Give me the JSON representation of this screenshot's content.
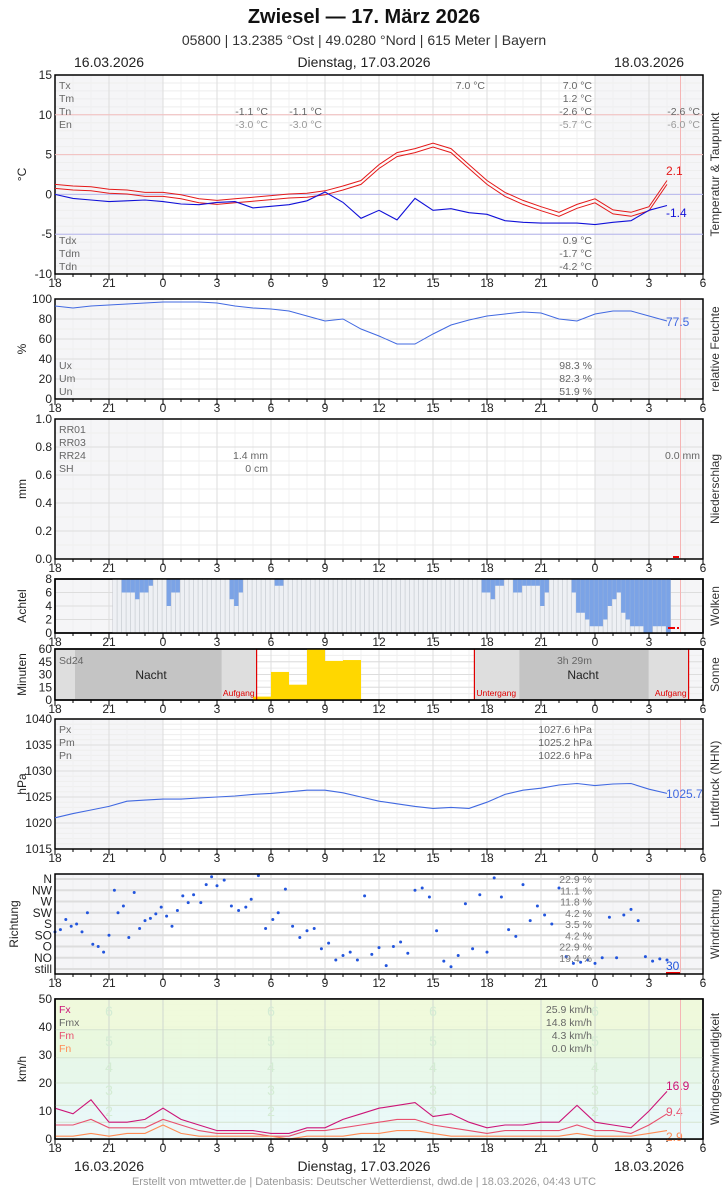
{
  "header": {
    "title": "Zwiesel  —  17. März 2026",
    "subtitle": "05800  |  13.2385 °Ost  |  49.0280 °Nord  |  615 Meter  |  Bayern",
    "date_left": "16.03.2026",
    "date_center": "Dienstag, 17.03.2026",
    "date_right": "18.03.2026"
  },
  "footer": {
    "text": "Erstellt von mtwetter.de | Datenbasis: Deutscher Wetterdienst, dwd.de | 18.03.2026, 04:43 UTC"
  },
  "x_axis": {
    "ticks": [
      "18",
      "21",
      "0",
      "3",
      "6",
      "9",
      "12",
      "15",
      "18",
      "21",
      "0",
      "3",
      "6"
    ],
    "hours_total": 36,
    "current_time_hour": 34.75
  },
  "colors": {
    "temp": "#e41a1a",
    "dew": "#1010d8",
    "humidity": "#4169e1",
    "cloud": "#7ba3e6",
    "sun": "#ffd700",
    "pressure": "#4169e1",
    "winddir": "#2255dd",
    "fx": "#cc1477",
    "fm": "#e8506e",
    "fn": "#ff8c55",
    "sunline": "#e00000"
  },
  "chart_data": [
    {
      "type": "line",
      "title": "Temperatur & Taupunkt",
      "ylabel": "°C",
      "ylim": [
        -10,
        15
      ],
      "yticks": [
        15,
        10,
        5,
        0,
        -5,
        -10
      ],
      "legend_top": [
        "Tx",
        "Tm",
        "Tn",
        "En"
      ],
      "legend_bottom": [
        "Tdx",
        "Tdm",
        "Tdn"
      ],
      "stats_day1": {
        "Tn": "-1.1 °C",
        "En": "-3.0 °C"
      },
      "stats_day1b": {
        "Tn": "-1.1 °C",
        "En": "-3.0 °C"
      },
      "stats_day2": {
        "Tx_mid": "7.0 °C",
        "Tx": "7.0 °C",
        "Tm": "1.2 °C",
        "Tn": "-2.6 °C",
        "En": "-5.7 °C",
        "Tdx": "0.9 °C",
        "Tdm": "-1.7 °C",
        "Tdn": "-4.2 °C"
      },
      "stats_day3": {
        "Tn": "-2.6 °C",
        "En": "-6.0 °C"
      },
      "last_temp": "2.1",
      "last_dew": "-1.4",
      "x": [
        0,
        1,
        2,
        3,
        4,
        5,
        6,
        7,
        8,
        9,
        10,
        11,
        12,
        13,
        14,
        15,
        16,
        17,
        18,
        19,
        20,
        21,
        22,
        23,
        24,
        25,
        26,
        27,
        28,
        29,
        30,
        31,
        32,
        33,
        34
      ],
      "series": [
        {
          "name": "Temperatur",
          "values": [
            1.0,
            0.8,
            0.7,
            0.4,
            0.3,
            0.0,
            0.0,
            -0.3,
            -0.8,
            -1.0,
            -0.8,
            -0.6,
            -0.4,
            -0.2,
            -0.1,
            0.2,
            0.8,
            1.5,
            3.5,
            5.0,
            5.5,
            6.2,
            5.5,
            3.5,
            1.5,
            0.0,
            -1.0,
            -1.8,
            -2.5,
            -1.5,
            -0.8,
            -2.2,
            -2.5,
            -1.8,
            1.5
          ]
        },
        {
          "name": "Taupunkt",
          "values": [
            0.0,
            -0.5,
            -0.7,
            -0.9,
            -0.8,
            -0.7,
            -0.9,
            -1.2,
            -1.3,
            -1.0,
            -0.9,
            -1.7,
            -1.5,
            -1.3,
            -0.8,
            0.3,
            -1.0,
            -3.0,
            -2.0,
            -3.2,
            -0.5,
            -2.0,
            -1.8,
            -2.3,
            -2.5,
            -3.3,
            -3.5,
            -3.6,
            -3.6,
            -3.6,
            -3.8,
            -3.5,
            -3.3,
            -2.0,
            -1.4
          ]
        }
      ]
    },
    {
      "type": "line",
      "title": "relative Feuchte",
      "ylabel": "%",
      "ylim": [
        0,
        100
      ],
      "yticks": [
        100,
        80,
        60,
        40,
        20,
        0
      ],
      "legend": [
        "Ux",
        "Um",
        "Un"
      ],
      "stats": [
        "98.3 %",
        "82.3 %",
        "51.9 %"
      ],
      "last_value": "77.5",
      "x": [
        0,
        1,
        2,
        3,
        4,
        5,
        6,
        7,
        8,
        9,
        10,
        11,
        12,
        13,
        14,
        15,
        16,
        17,
        18,
        19,
        20,
        21,
        22,
        23,
        24,
        25,
        26,
        27,
        28,
        29,
        30,
        31,
        32,
        33,
        34
      ],
      "values": [
        93,
        91,
        93,
        94,
        95,
        96,
        97,
        97,
        97,
        96,
        93,
        91,
        90,
        88,
        83,
        78,
        80,
        70,
        63,
        55,
        55,
        65,
        74,
        79,
        83,
        85,
        87,
        86,
        80,
        78,
        85,
        88,
        88,
        83,
        78
      ]
    },
    {
      "type": "bar",
      "title": "Niederschlag",
      "ylabel": "mm",
      "ylim": [
        0,
        1.0
      ],
      "yticks": [
        "1.0",
        "0.8",
        "0.6",
        "0.4",
        "0.2",
        "0.0"
      ],
      "legend": [
        "RR01",
        "RR03",
        "RR24",
        "SH"
      ],
      "stats_day1": [
        "1.4 mm",
        "0 cm"
      ],
      "stats_day3": "0.0 mm",
      "values": []
    },
    {
      "type": "bar",
      "title": "Wolken",
      "ylabel": "Achtel",
      "ylim": [
        0,
        8
      ],
      "yticks": [
        8,
        6,
        4,
        2,
        0
      ],
      "x_step_hours": 0.25,
      "values": [
        8,
        8,
        6,
        6,
        6,
        5,
        6,
        6,
        7,
        8,
        8,
        8,
        4,
        6,
        6,
        8,
        8,
        8,
        8,
        8,
        8,
        8,
        8,
        8,
        8,
        8,
        5,
        4,
        6,
        8,
        8,
        8,
        8,
        8,
        8,
        8,
        7,
        7,
        8,
        8,
        8,
        8,
        8,
        8,
        8,
        8,
        8,
        8,
        8,
        8,
        8,
        8,
        8,
        8,
        8,
        8,
        8,
        8,
        8,
        8,
        8,
        8,
        8,
        8,
        8,
        8,
        8,
        8,
        8,
        8,
        8,
        8,
        8,
        8,
        8,
        8,
        8,
        8,
        8,
        8,
        8,
        8,
        6,
        6,
        5,
        7,
        7,
        8,
        8,
        6,
        6,
        7,
        7,
        7,
        7,
        4,
        6,
        8,
        8,
        8,
        8,
        8,
        6,
        3,
        3,
        2,
        1,
        1,
        1,
        2,
        4,
        5,
        6,
        3,
        2,
        1,
        1,
        1,
        0,
        0,
        1,
        1,
        1,
        0,
        0,
        0,
        0,
        0,
        0,
        0,
        0,
        0,
        0,
        0,
        0,
        0,
        0,
        0,
        0,
        0,
        0,
        0,
        0,
        0,
        0,
        0,
        0,
        0,
        0,
        0,
        0,
        0,
        0,
        0,
        0,
        0,
        0,
        0,
        0,
        0,
        0,
        0,
        0,
        0,
        0,
        0,
        0,
        0,
        0,
        0,
        0,
        0,
        1,
        3,
        5,
        5,
        3,
        2,
        3,
        5,
        6,
        7,
        8,
        8,
        8,
        7,
        7,
        8,
        6,
        6,
        8,
        8,
        8,
        8
      ]
    },
    {
      "type": "bar",
      "title": "Sonne",
      "ylabel": "Minuten",
      "ylim": [
        0,
        60
      ],
      "yticks": [
        60,
        45,
        30,
        15,
        0
      ],
      "legend": "Sd24",
      "stat_day2": "3h 29m",
      "night_label": "Nacht",
      "sunrise_label": "Aufgang",
      "sunset_label": "Untergang",
      "sunrise1_hour": 11.2,
      "sunset_hour": 23.3,
      "sunrise2_hour": 35.2,
      "categories_hours": [
        17,
        18,
        19,
        20,
        21,
        22
      ],
      "values": [
        4,
        33,
        18,
        60,
        46,
        47
      ]
    },
    {
      "type": "line",
      "title": "Luftdruck (NHN)",
      "ylabel": "hPa",
      "ylim": [
        1015,
        1040
      ],
      "yticks": [
        1040,
        1035,
        1030,
        1025,
        1020,
        1015
      ],
      "legend": [
        "Px",
        "Pm",
        "Pn"
      ],
      "stats": [
        "1027.6 hPa",
        "1025.2 hPa",
        "1022.6 hPa"
      ],
      "last_value": "1025.7",
      "x": [
        0,
        1,
        2,
        3,
        4,
        5,
        6,
        7,
        8,
        9,
        10,
        11,
        12,
        13,
        14,
        15,
        16,
        17,
        18,
        19,
        20,
        21,
        22,
        23,
        24,
        25,
        26,
        27,
        28,
        29,
        30,
        31,
        32,
        33,
        34
      ],
      "values": [
        1021.0,
        1021.8,
        1022.5,
        1023.2,
        1024.2,
        1024.4,
        1024.6,
        1024.6,
        1024.8,
        1025.0,
        1025.2,
        1025.5,
        1025.7,
        1026.0,
        1026.3,
        1026.3,
        1025.8,
        1025.0,
        1024.2,
        1023.7,
        1023.2,
        1022.8,
        1023.0,
        1022.8,
        1024.0,
        1025.5,
        1026.3,
        1026.7,
        1027.3,
        1027.6,
        1027.2,
        1027.5,
        1027.6,
        1026.5,
        1025.7
      ]
    },
    {
      "type": "scatter",
      "title": "Windrichtung",
      "ylabel": "Richtung",
      "categories": [
        "N",
        "NW",
        "W",
        "SW",
        "S",
        "SO",
        "O",
        "NO",
        "still"
      ],
      "stats": [
        "22.9 %",
        "11.1 %",
        "11.8 %",
        "4.2 %",
        "3.5 %",
        "4.2 %",
        "22.9 %",
        "19.4 %"
      ],
      "last_value": "30",
      "points": [
        [
          0,
          3.3
        ],
        [
          0.3,
          3.5
        ],
        [
          0.6,
          4.4
        ],
        [
          0.9,
          3.8
        ],
        [
          1.2,
          4.0
        ],
        [
          1.5,
          3.3
        ],
        [
          1.8,
          5.0
        ],
        [
          2.1,
          2.2
        ],
        [
          2.4,
          2.0
        ],
        [
          2.7,
          1.5
        ],
        [
          3.0,
          3.0
        ],
        [
          3.3,
          7.0
        ],
        [
          3.5,
          5.0
        ],
        [
          3.8,
          5.6
        ],
        [
          4.1,
          2.8
        ],
        [
          4.4,
          6.8
        ],
        [
          4.7,
          3.6
        ],
        [
          5.0,
          4.3
        ],
        [
          5.3,
          4.5
        ],
        [
          5.6,
          4.9
        ],
        [
          5.9,
          5.5
        ],
        [
          6.2,
          4.7
        ],
        [
          6.5,
          3.8
        ],
        [
          6.8,
          5.2
        ],
        [
          7.1,
          6.5
        ],
        [
          7.4,
          5.9
        ],
        [
          7.7,
          6.6
        ],
        [
          8.1,
          5.9
        ],
        [
          8.4,
          7.5
        ],
        [
          8.7,
          8.2
        ],
        [
          9.0,
          7.4
        ],
        [
          9.4,
          7.9
        ],
        [
          9.8,
          5.6
        ],
        [
          10.2,
          5.2
        ],
        [
          10.6,
          5.5
        ],
        [
          10.9,
          6.2
        ],
        [
          11.3,
          8.3
        ],
        [
          11.7,
          3.6
        ],
        [
          12.1,
          4.4
        ],
        [
          12.4,
          5.0
        ],
        [
          12.8,
          7.1
        ],
        [
          13.2,
          3.8
        ],
        [
          13.6,
          2.8
        ],
        [
          14.0,
          3.4
        ],
        [
          14.4,
          3.6
        ],
        [
          14.8,
          1.8
        ],
        [
          15.2,
          2.3
        ],
        [
          15.6,
          0.8
        ],
        [
          16.0,
          1.2
        ],
        [
          16.4,
          1.5
        ],
        [
          16.8,
          0.8
        ],
        [
          17.2,
          6.5
        ],
        [
          17.6,
          1.3
        ],
        [
          18.0,
          1.9
        ],
        [
          18.4,
          0.3
        ],
        [
          18.8,
          2.0
        ],
        [
          19.2,
          2.4
        ],
        [
          19.6,
          1.4
        ],
        [
          20.0,
          7.0
        ],
        [
          20.4,
          7.2
        ],
        [
          20.8,
          6.4
        ],
        [
          21.2,
          3.4
        ],
        [
          21.6,
          0.7
        ],
        [
          22.0,
          0.2
        ],
        [
          22.4,
          1.2
        ],
        [
          22.8,
          5.8
        ],
        [
          23.2,
          1.8
        ],
        [
          23.6,
          6.6
        ],
        [
          24.0,
          1.5
        ],
        [
          24.4,
          8.1
        ],
        [
          24.8,
          6.4
        ],
        [
          25.2,
          3.5
        ],
        [
          25.6,
          2.9
        ],
        [
          26.0,
          7.5
        ],
        [
          26.4,
          4.3
        ],
        [
          26.8,
          5.6
        ],
        [
          27.2,
          4.8
        ],
        [
          27.6,
          4.0
        ],
        [
          28.0,
          7.2
        ],
        [
          28.4,
          1.1
        ],
        [
          28.8,
          0.5
        ],
        [
          29.2,
          0.6
        ],
        [
          29.6,
          0.8
        ],
        [
          30.0,
          0.5
        ],
        [
          30.4,
          1.0
        ],
        [
          30.8,
          4.6
        ],
        [
          31.2,
          1.0
        ],
        [
          31.6,
          4.8
        ],
        [
          32.0,
          5.3
        ],
        [
          32.4,
          4.3
        ],
        [
          32.8,
          1.1
        ],
        [
          33.2,
          0.7
        ],
        [
          33.6,
          0.9
        ],
        [
          34.0,
          0.8
        ]
      ]
    },
    {
      "type": "line",
      "title": "Windgeschwindigkeit",
      "ylabel": "km/h",
      "ylim": [
        0,
        50
      ],
      "yticks": [
        50,
        40,
        30,
        20,
        10,
        0
      ],
      "legend": [
        "Fx",
        "Fmx",
        "Fm",
        "Fn"
      ],
      "stats": [
        "25.9 km/h",
        "14.8 km/h",
        "4.3 km/h",
        "0.0 km/h"
      ],
      "beaufort_labels": [
        "6",
        "5",
        "4",
        "3",
        "2"
      ],
      "last_values": {
        "Fx": "16.9",
        "Fm": "9.4",
        "Fn": "2.9"
      },
      "x": [
        0,
        1,
        2,
        3,
        4,
        5,
        6,
        7,
        8,
        9,
        10,
        11,
        12,
        13,
        14,
        15,
        16,
        17,
        18,
        19,
        20,
        21,
        22,
        23,
        24,
        25,
        26,
        27,
        28,
        29,
        30,
        31,
        32,
        33,
        34
      ],
      "series": [
        {
          "name": "Fx",
          "values": [
            11,
            9,
            14,
            6,
            6,
            7,
            11,
            7,
            5,
            3,
            3,
            3,
            2,
            2,
            4,
            4,
            7,
            9,
            11,
            12,
            13,
            8,
            9,
            6,
            4,
            5,
            5,
            6,
            6,
            12,
            6,
            5,
            4,
            10,
            17
          ]
        },
        {
          "name": "Fm",
          "values": [
            5,
            5,
            7,
            4,
            4,
            4,
            7,
            5,
            3,
            2,
            2,
            2,
            1,
            1,
            3,
            3,
            4,
            5,
            6,
            7,
            7,
            5,
            4,
            3,
            2,
            3,
            3,
            3,
            3,
            5,
            3,
            3,
            2,
            5,
            9
          ]
        },
        {
          "name": "Fn",
          "values": [
            1,
            1,
            2,
            1,
            2,
            2,
            5,
            2,
            1,
            1,
            1,
            1,
            1,
            0,
            1,
            1,
            1,
            2,
            2,
            3,
            3,
            2,
            1,
            1,
            1,
            1,
            1,
            1,
            1,
            2,
            1,
            1,
            1,
            2,
            3
          ]
        }
      ]
    }
  ]
}
